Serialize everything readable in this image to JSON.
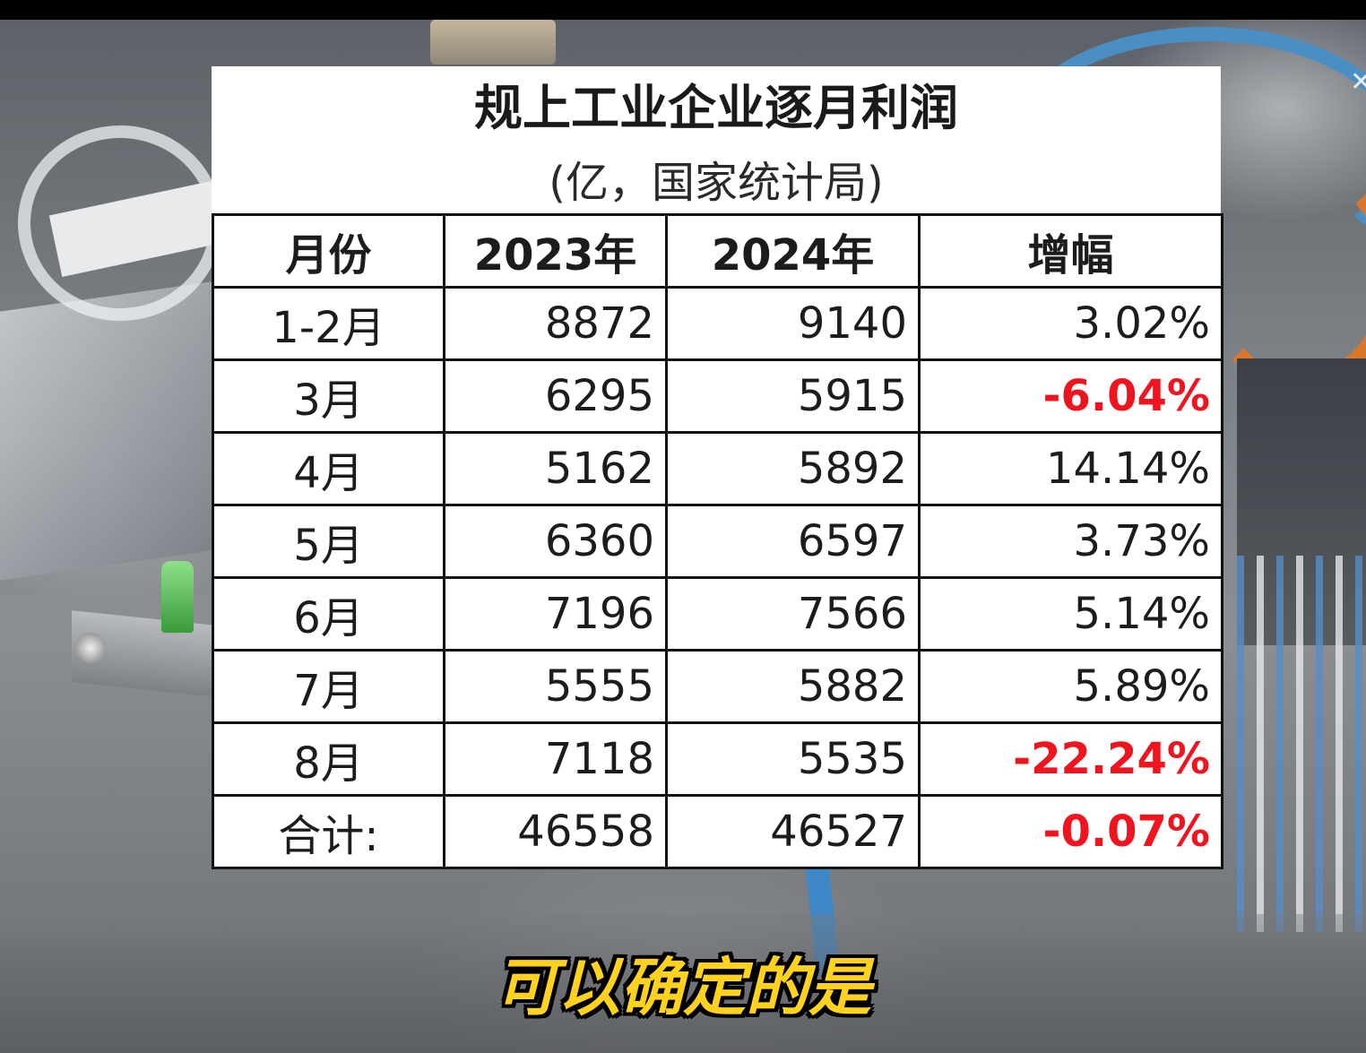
{
  "table": {
    "title": "规上工业企业逐月利润",
    "subtitle": "(亿，国家统计局)",
    "columns": [
      "月份",
      "2023年",
      "2024年",
      "增幅"
    ],
    "rows": [
      {
        "month": "1-2月",
        "y2023": "8872",
        "y2024": "9140",
        "growth": "3.02%",
        "negative": false
      },
      {
        "month": "3月",
        "y2023": "6295",
        "y2024": "5915",
        "growth": "-6.04%",
        "negative": true
      },
      {
        "month": "4月",
        "y2023": "5162",
        "y2024": "5892",
        "growth": "14.14%",
        "negative": false
      },
      {
        "month": "5月",
        "y2023": "6360",
        "y2024": "6597",
        "growth": "3.73%",
        "negative": false
      },
      {
        "month": "6月",
        "y2023": "7196",
        "y2024": "7566",
        "growth": "5.14%",
        "negative": false
      },
      {
        "month": "7月",
        "y2023": "5555",
        "y2024": "5882",
        "growth": "5.89%",
        "negative": false
      },
      {
        "month": "8月",
        "y2023": "7118",
        "y2024": "5535",
        "growth": "-22.24%",
        "negative": true
      }
    ],
    "total": {
      "label": "合计:",
      "y2023": "46558",
      "y2024": "46527",
      "growth": "-0.07%",
      "negative": true
    }
  },
  "caption": "可以确定的是",
  "colors": {
    "negative": "#f0141e",
    "caption": "#ffd21f",
    "border": "#111111"
  }
}
